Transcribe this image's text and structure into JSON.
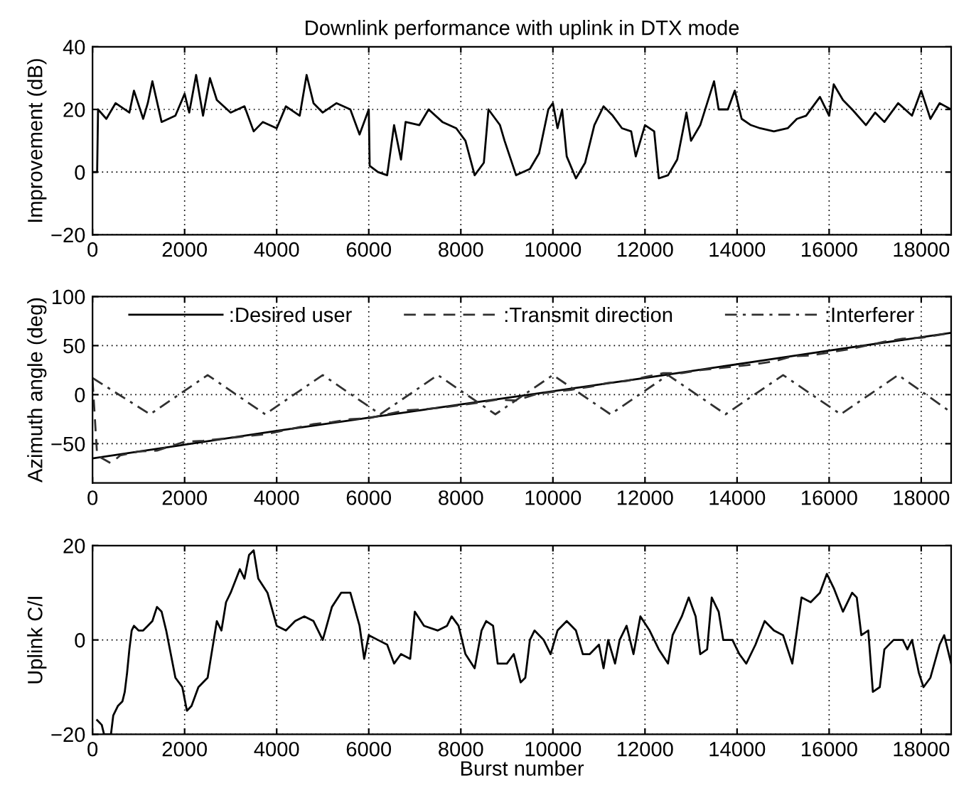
{
  "chart_data": [
    {
      "type": "line",
      "title": "Downlink performance with uplink in DTX mode",
      "ylabel": "Improvement (dB)",
      "xlim": [
        0,
        18650
      ],
      "xticks": [
        0,
        2000,
        4000,
        6000,
        8000,
        10000,
        12000,
        14000,
        16000,
        18000
      ],
      "ylim": [
        -20,
        40
      ],
      "yticks": [
        -20,
        0,
        20,
        40
      ],
      "grid": true,
      "series": [
        {
          "color": "#000000",
          "line_style": "solid",
          "x": [
            0,
            100,
            120,
            300,
            500,
            800,
            900,
            1100,
            1200,
            1300,
            1500,
            1800,
            2000,
            2100,
            2250,
            2400,
            2550,
            2700,
            3000,
            3300,
            3500,
            3700,
            4000,
            4200,
            4500,
            4650,
            4800,
            5000,
            5300,
            5600,
            5800,
            6000,
            6020,
            6200,
            6400,
            6550,
            6700,
            6800,
            7100,
            7300,
            7600,
            7900,
            8100,
            8300,
            8500,
            8600,
            8850,
            8950,
            9200,
            9500,
            9700,
            9900,
            10000,
            10100,
            10200,
            10300,
            10500,
            10700,
            10900,
            11100,
            11300,
            11500,
            11700,
            11800,
            12000,
            12200,
            12300,
            12500,
            12700,
            12900,
            13000,
            13200,
            13500,
            13600,
            13800,
            13950,
            14100,
            14300,
            14500,
            14800,
            15100,
            15300,
            15500,
            15800,
            16000,
            16100,
            16300,
            16500,
            16800,
            17000,
            17200,
            17500,
            17800,
            18000,
            18200,
            18400,
            18650
          ],
          "values": [
            0,
            0,
            20,
            17,
            22,
            19,
            26,
            17,
            22,
            29,
            16,
            18,
            25,
            19,
            31,
            18,
            30,
            23,
            19,
            21,
            13,
            16,
            14,
            21,
            18,
            31,
            22,
            19,
            22,
            20,
            12,
            20,
            2,
            0,
            -1,
            15,
            4,
            16,
            15,
            20,
            16,
            14,
            10,
            -1,
            3,
            20,
            15,
            10,
            -1,
            1,
            6,
            20,
            22,
            14,
            20,
            5,
            -2,
            3,
            15,
            21,
            18,
            14,
            13,
            5,
            15,
            13,
            -2,
            -1,
            4,
            19,
            10,
            15,
            29,
            20,
            20,
            26,
            17,
            15,
            14,
            13,
            14,
            17,
            18,
            24,
            18,
            28,
            23,
            20,
            15,
            19,
            16,
            22,
            18,
            26,
            17,
            22,
            20
          ]
        }
      ]
    },
    {
      "type": "line",
      "ylabel": "Azimuth angle (deg)",
      "xlim": [
        0,
        18650
      ],
      "xticks": [
        0,
        2000,
        4000,
        6000,
        8000,
        10000,
        12000,
        14000,
        16000,
        18000
      ],
      "ylim": [
        -90,
        100
      ],
      "yticks": [
        -50,
        0,
        50,
        100
      ],
      "grid": true,
      "legend": "top",
      "series": [
        {
          "name": ":Desired user",
          "color": "#000000",
          "line_style": "solid",
          "x": [
            0,
            4000,
            8000,
            12000,
            16000,
            18650
          ],
          "values": [
            -65,
            -37,
            -10,
            17,
            45,
            63
          ]
        },
        {
          "name": ":Transmit direction",
          "color": "#303030",
          "line_style": "dashed",
          "x": [
            0,
            100,
            400,
            600,
            1000,
            1400,
            2000,
            2400,
            2800,
            3200,
            3800,
            4200,
            4800,
            5200,
            5600,
            6000,
            6400,
            6800,
            7200,
            7800,
            8400,
            8800,
            9200,
            9600,
            10000,
            10400,
            10800,
            11200,
            11600,
            12000,
            12400,
            12800,
            13200,
            13600,
            14000,
            14400,
            14800,
            15200,
            15600,
            16000,
            16400,
            16800,
            17200,
            17600,
            18000,
            18650
          ],
          "values": [
            15,
            -62,
            -70,
            -62,
            -58,
            -57,
            -48,
            -47,
            -45,
            -43,
            -40,
            -36,
            -30,
            -28,
            -25,
            -24,
            -20,
            -16,
            -15,
            -12,
            -8,
            -5,
            -6,
            0,
            3,
            5,
            8,
            12,
            14,
            18,
            22,
            22,
            25,
            27,
            29,
            31,
            34,
            39,
            40,
            43,
            46,
            50,
            54,
            57,
            58,
            63
          ]
        },
        {
          "name": ":Interferer",
          "color": "#303030",
          "line_style": "dashdot",
          "x": [
            0,
            1250,
            2500,
            3750,
            5000,
            6250,
            7500,
            8750,
            10000,
            11250,
            12500,
            13750,
            15000,
            16250,
            17500,
            18650
          ],
          "values": [
            17,
            -20,
            20,
            -20,
            20,
            -20,
            20,
            -20,
            20,
            -20,
            20,
            -20,
            20,
            -20,
            20,
            -18
          ]
        }
      ]
    },
    {
      "type": "line",
      "ylabel": "Uplink C/I",
      "xlabel": "Burst number",
      "xlim": [
        0,
        18650
      ],
      "xticks": [
        0,
        2000,
        4000,
        6000,
        8000,
        10000,
        12000,
        14000,
        16000,
        18000
      ],
      "ylim": [
        -20,
        20
      ],
      "yticks": [
        -20,
        0,
        20
      ],
      "grid": true,
      "series": [
        {
          "color": "#000000",
          "line_style": "solid",
          "x": [
            100,
            200,
            250,
            400,
            450,
            550,
            650,
            700,
            750,
            800,
            850,
            900,
            1000,
            1100,
            1200,
            1300,
            1400,
            1500,
            1600,
            1700,
            1800,
            1950,
            2050,
            2150,
            2300,
            2500,
            2600,
            2700,
            2800,
            2900,
            3000,
            3200,
            3300,
            3400,
            3500,
            3600,
            3800,
            4000,
            4200,
            4400,
            4600,
            4800,
            5000,
            5200,
            5400,
            5600,
            5800,
            5900,
            6000,
            6200,
            6400,
            6550,
            6700,
            6900,
            7000,
            7200,
            7500,
            7700,
            7800,
            7950,
            8100,
            8300,
            8450,
            8550,
            8700,
            8800,
            9000,
            9150,
            9300,
            9400,
            9500,
            9600,
            9800,
            9950,
            10100,
            10300,
            10500,
            10650,
            10800,
            11000,
            11100,
            11200,
            11350,
            11450,
            11600,
            11750,
            11900,
            12100,
            12300,
            12500,
            12600,
            12800,
            12950,
            13100,
            13200,
            13350,
            13450,
            13600,
            13700,
            13900,
            14050,
            14200,
            14400,
            14600,
            14800,
            15000,
            15200,
            15300,
            15400,
            15600,
            15800,
            15950,
            16100,
            16300,
            16500,
            16600,
            16700,
            16850,
            16950,
            17100,
            17200,
            17400,
            17600,
            17700,
            17800,
            17950,
            18050,
            18200,
            18400,
            18500,
            18650
          ],
          "values": [
            -17,
            -18,
            -20,
            -20,
            -16,
            -14,
            -13,
            -11,
            -7,
            -2,
            2,
            3,
            2,
            2,
            3,
            4,
            7,
            6,
            2,
            -3,
            -8,
            -10,
            -15,
            -14,
            -10,
            -8,
            -2,
            4,
            2,
            8,
            10,
            15,
            13,
            18,
            19,
            13,
            10,
            3,
            2,
            4,
            5,
            4,
            0,
            7,
            10,
            10,
            3,
            -4,
            1,
            0,
            -1,
            -5,
            -3,
            -4,
            6,
            3,
            2,
            3,
            5,
            3,
            -3,
            -6,
            2,
            4,
            3,
            -5,
            -5,
            -3,
            -9,
            -8,
            0,
            2,
            0,
            -3,
            2,
            4,
            2,
            -3,
            -3,
            -1,
            -6,
            0,
            -5,
            0,
            3,
            -3,
            5,
            2,
            -2,
            -5,
            1,
            5,
            9,
            5,
            -3,
            -2,
            9,
            6,
            0,
            0,
            -3,
            -5,
            -1,
            4,
            2,
            1,
            -5,
            2,
            9,
            8,
            10,
            14,
            11,
            6,
            10,
            9,
            1,
            2,
            -11,
            -10,
            -2,
            0,
            0,
            -2,
            0,
            -7,
            -10,
            -8,
            -1,
            1,
            -5
          ]
        }
      ]
    }
  ]
}
